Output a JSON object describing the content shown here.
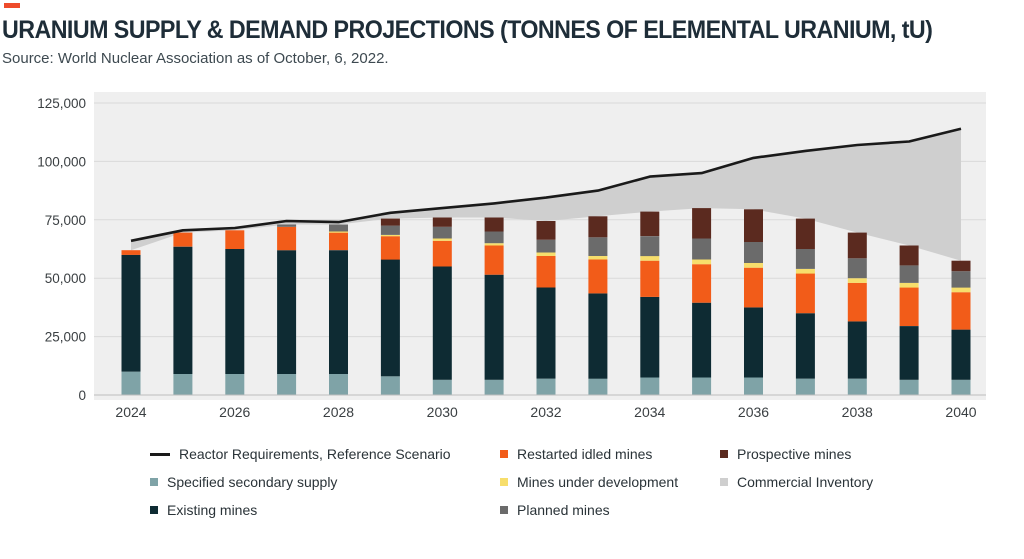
{
  "header": {
    "title": "URANIUM SUPPLY & DEMAND PROJECTIONS (TONNES OF ELEMENTAL URANIUM, tU)",
    "subtitle": "Source: World Nuclear Association as of October, 6, 2022.",
    "accent_color": "#ee4b2b"
  },
  "chart_data": {
    "type": "bar",
    "stacked": true,
    "title": "URANIUM SUPPLY & DEMAND PROJECTIONS (TONNES OF ELEMENTAL URANIUM, tU)",
    "subtitle": "Source: World Nuclear Association as of October, 6, 2022.",
    "xlabel": "",
    "ylabel": "",
    "ylim": [
      0,
      125000
    ],
    "yticks": [
      0,
      25000,
      50000,
      75000,
      100000,
      125000
    ],
    "ytick_labels": [
      "0",
      "25,000",
      "50,000",
      "75,000",
      "100,000",
      "125,000"
    ],
    "categories": [
      2024,
      2025,
      2026,
      2027,
      2028,
      2029,
      2030,
      2031,
      2032,
      2033,
      2034,
      2035,
      2036,
      2037,
      2038,
      2039,
      2040
    ],
    "xtick_labels": [
      "2024",
      "",
      "2026",
      "",
      "2028",
      "",
      "2030",
      "",
      "2032",
      "",
      "2034",
      "",
      "2036",
      "",
      "2038",
      "",
      "2040"
    ],
    "grid": true,
    "legend_position": "bottom",
    "series": [
      {
        "name": "Specified secondary supply",
        "color": "#7fa3a7",
        "values": [
          10000,
          9000,
          9000,
          9000,
          9000,
          8000,
          6500,
          6500,
          7000,
          7000,
          7500,
          7500,
          7500,
          7000,
          7000,
          6500,
          6500
        ]
      },
      {
        "name": "Existing mines",
        "color": "#0e2b33",
        "values": [
          50000,
          54500,
          53500,
          53000,
          53000,
          50000,
          48500,
          45000,
          39000,
          36500,
          34500,
          32000,
          30000,
          28000,
          24500,
          23000,
          21500
        ]
      },
      {
        "name": "Restarted idled mines",
        "color": "#f25c19",
        "values": [
          2000,
          6000,
          8000,
          10000,
          7500,
          10000,
          11000,
          12500,
          13500,
          14500,
          15500,
          16500,
          17000,
          17000,
          16500,
          16500,
          16000
        ]
      },
      {
        "name": "Mines under development",
        "color": "#f7de6c",
        "values": [
          0,
          0,
          0,
          0,
          500,
          500,
          1000,
          1000,
          1500,
          1500,
          2000,
          2000,
          2000,
          2000,
          2000,
          2000,
          2000
        ]
      },
      {
        "name": "Planned mines",
        "color": "#6b6b6b",
        "values": [
          0,
          0,
          0,
          1000,
          3000,
          4000,
          5000,
          5000,
          5500,
          8000,
          8500,
          9000,
          9000,
          8500,
          8500,
          7500,
          7000
        ]
      },
      {
        "name": "Prospective mines",
        "color": "#5b2a1f",
        "values": [
          0,
          0,
          0,
          0,
          0,
          3000,
          4000,
          6000,
          8000,
          9000,
          10500,
          13000,
          14000,
          13000,
          11000,
          8500,
          4500
        ]
      }
    ],
    "reactor_requirements": {
      "name": "Reactor Requirements, Reference Scenario",
      "color": "#1a1a1a",
      "values": [
        66000,
        70500,
        71500,
        74500,
        74000,
        78000,
        80000,
        82000,
        84500,
        87500,
        93500,
        95000,
        101500,
        104500,
        107000,
        108500,
        114000
      ]
    },
    "commercial_inventory": {
      "name": "Commercial Inventory",
      "color": "#cfcfcf",
      "note_shading": "area between total supply and reactor requirements"
    },
    "legend": [
      {
        "label": "Reactor Requirements, Reference Scenario",
        "color": "#1a1a1a",
        "kind": "line"
      },
      {
        "label": "Restarted idled mines",
        "color": "#f25c19",
        "kind": "square"
      },
      {
        "label": "Prospective mines",
        "color": "#5b2a1f",
        "kind": "square"
      },
      {
        "label": "Specified secondary supply",
        "color": "#7fa3a7",
        "kind": "square"
      },
      {
        "label": "Mines under development",
        "color": "#f7de6c",
        "kind": "square"
      },
      {
        "label": "Commercial Inventory",
        "color": "#cfcfcf",
        "kind": "square"
      },
      {
        "label": "Existing mines",
        "color": "#0e2b33",
        "kind": "square"
      },
      {
        "label": "Planned mines",
        "color": "#6b6b6b",
        "kind": "square"
      }
    ]
  }
}
